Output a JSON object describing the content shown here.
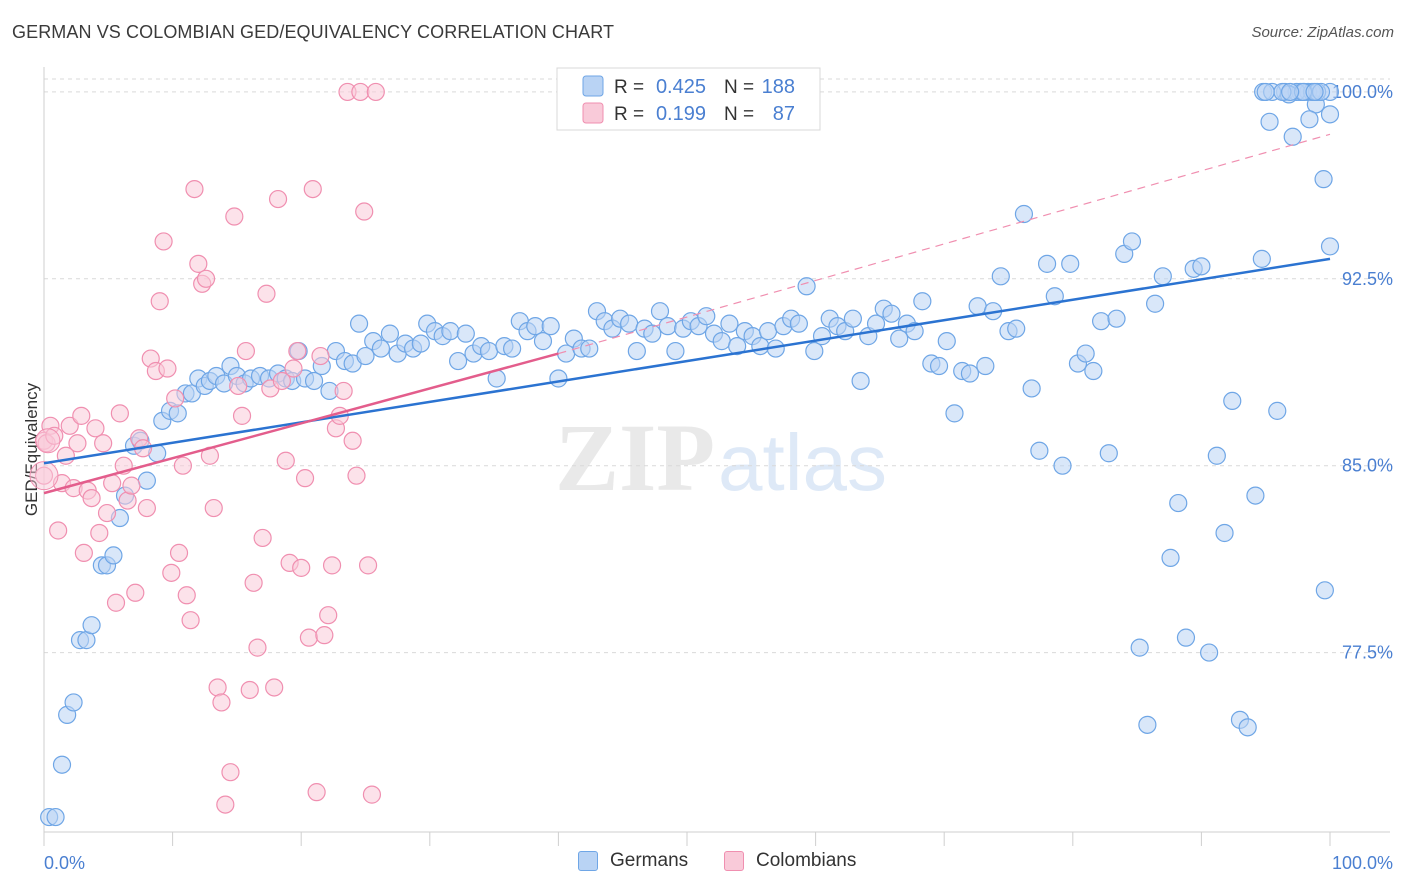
{
  "header": {
    "title": "GERMAN VS COLOMBIAN GED/EQUIVALENCY CORRELATION CHART",
    "source": "Source: ZipAtlas.com"
  },
  "watermark": {
    "zip": "ZIP",
    "atlas": "atlas"
  },
  "colors": {
    "blue": "#6fa6e6",
    "blue_fill": "#b9d3f4",
    "blue_line": "#2b73d1",
    "pink": "#f08fb0",
    "pink_fill": "#f9cad9",
    "pink_line": "#e35d8c",
    "axis_text": "#4a7fd1",
    "grid": "#d9d9d9"
  },
  "legend_stats": [
    {
      "series": "Germans",
      "r_label": "R =",
      "r_value": "0.425",
      "n_label": "N =",
      "n_value": "188"
    },
    {
      "series": "Colombians",
      "r_label": "R =",
      "r_value": "0.199",
      "n_label": "N =",
      "n_value": "87"
    }
  ],
  "chart_data": {
    "type": "scatter",
    "title": "GERMAN VS COLOMBIAN GED/EQUIVALENCY CORRELATION CHART",
    "xlabel": "",
    "ylabel": "GED/Equivalency",
    "xlim": [
      0,
      100
    ],
    "ylim": [
      70.3,
      101.0
    ],
    "x_tick_labels": [
      "0.0%",
      "100.0%"
    ],
    "y_ticks": [
      77.5,
      85.0,
      92.5,
      100.0
    ],
    "y_tick_labels": [
      "77.5%",
      "85.0%",
      "92.5%",
      "100.0%"
    ],
    "grid": true,
    "legend_position": "top-center",
    "series": [
      {
        "name": "Germans",
        "trend": {
          "x": [
            0,
            100
          ],
          "y": [
            85.1,
            93.3
          ],
          "style": "solid"
        },
        "points": [
          [
            0.4,
            70.9
          ],
          [
            0.9,
            70.9
          ],
          [
            1.4,
            73.0
          ],
          [
            1.8,
            75.0
          ],
          [
            2.3,
            75.5
          ],
          [
            2.8,
            78.0
          ],
          [
            3.3,
            78.0
          ],
          [
            3.7,
            78.6
          ],
          [
            4.5,
            81.0
          ],
          [
            4.9,
            81.0
          ],
          [
            5.4,
            81.4
          ],
          [
            5.9,
            82.9
          ],
          [
            6.3,
            83.8
          ],
          [
            7.0,
            85.8
          ],
          [
            7.5,
            86.0
          ],
          [
            8.0,
            84.4
          ],
          [
            8.8,
            85.5
          ],
          [
            9.2,
            86.8
          ],
          [
            9.8,
            87.2
          ],
          [
            10.4,
            87.1
          ],
          [
            11.0,
            87.9
          ],
          [
            11.5,
            87.9
          ],
          [
            12.0,
            88.5
          ],
          [
            12.5,
            88.2
          ],
          [
            12.9,
            88.4
          ],
          [
            13.4,
            88.6
          ],
          [
            14.0,
            88.3
          ],
          [
            14.5,
            89.0
          ],
          [
            15.0,
            88.6
          ],
          [
            15.6,
            88.3
          ],
          [
            16.1,
            88.5
          ],
          [
            16.8,
            88.6
          ],
          [
            17.5,
            88.5
          ],
          [
            18.2,
            88.7
          ],
          [
            18.8,
            88.5
          ],
          [
            19.3,
            88.4
          ],
          [
            19.8,
            89.6
          ],
          [
            20.3,
            88.5
          ],
          [
            21.0,
            88.4
          ],
          [
            21.6,
            89.0
          ],
          [
            22.2,
            88.0
          ],
          [
            22.7,
            89.6
          ],
          [
            23.4,
            89.2
          ],
          [
            24.0,
            89.1
          ],
          [
            24.5,
            90.7
          ],
          [
            25.0,
            89.4
          ],
          [
            25.6,
            90.0
          ],
          [
            26.2,
            89.7
          ],
          [
            26.9,
            90.3
          ],
          [
            27.5,
            89.5
          ],
          [
            28.1,
            89.9
          ],
          [
            28.7,
            89.7
          ],
          [
            29.3,
            89.9
          ],
          [
            29.8,
            90.7
          ],
          [
            30.4,
            90.4
          ],
          [
            31.0,
            90.2
          ],
          [
            31.6,
            90.4
          ],
          [
            32.2,
            89.2
          ],
          [
            32.8,
            90.3
          ],
          [
            33.4,
            89.5
          ],
          [
            34.0,
            89.8
          ],
          [
            34.6,
            89.6
          ],
          [
            35.2,
            88.5
          ],
          [
            35.8,
            89.8
          ],
          [
            36.4,
            89.7
          ],
          [
            37.0,
            90.8
          ],
          [
            37.6,
            90.4
          ],
          [
            38.2,
            90.6
          ],
          [
            38.8,
            90.0
          ],
          [
            39.4,
            90.6
          ],
          [
            40.0,
            88.5
          ],
          [
            40.6,
            89.5
          ],
          [
            41.2,
            90.1
          ],
          [
            41.8,
            89.7
          ],
          [
            42.4,
            89.7
          ],
          [
            43.0,
            91.2
          ],
          [
            43.6,
            90.8
          ],
          [
            44.2,
            90.5
          ],
          [
            44.8,
            90.9
          ],
          [
            45.5,
            90.7
          ],
          [
            46.1,
            89.6
          ],
          [
            46.7,
            90.5
          ],
          [
            47.3,
            90.3
          ],
          [
            47.9,
            91.2
          ],
          [
            48.5,
            90.6
          ],
          [
            49.1,
            89.6
          ],
          [
            49.7,
            90.5
          ],
          [
            50.3,
            90.8
          ],
          [
            50.9,
            90.6
          ],
          [
            51.5,
            91.0
          ],
          [
            52.1,
            90.3
          ],
          [
            52.7,
            90.0
          ],
          [
            53.3,
            90.7
          ],
          [
            53.9,
            89.8
          ],
          [
            54.5,
            90.4
          ],
          [
            55.1,
            90.2
          ],
          [
            55.7,
            89.8
          ],
          [
            56.3,
            90.4
          ],
          [
            56.9,
            89.7
          ],
          [
            57.5,
            90.6
          ],
          [
            58.1,
            90.9
          ],
          [
            58.7,
            90.7
          ],
          [
            59.3,
            92.2
          ],
          [
            59.9,
            89.6
          ],
          [
            60.5,
            90.2
          ],
          [
            61.1,
            90.9
          ],
          [
            61.7,
            90.6
          ],
          [
            62.3,
            90.4
          ],
          [
            62.9,
            90.9
          ],
          [
            63.5,
            88.4
          ],
          [
            64.1,
            90.2
          ],
          [
            64.7,
            90.7
          ],
          [
            65.3,
            91.3
          ],
          [
            65.9,
            91.1
          ],
          [
            66.5,
            90.1
          ],
          [
            67.1,
            90.7
          ],
          [
            67.7,
            90.4
          ],
          [
            68.3,
            91.6
          ],
          [
            69.0,
            89.1
          ],
          [
            69.6,
            89.0
          ],
          [
            70.2,
            90.0
          ],
          [
            70.8,
            87.1
          ],
          [
            71.4,
            88.8
          ],
          [
            72.0,
            88.7
          ],
          [
            72.6,
            91.4
          ],
          [
            73.2,
            89.0
          ],
          [
            73.8,
            91.2
          ],
          [
            74.4,
            92.6
          ],
          [
            75.0,
            90.4
          ],
          [
            75.6,
            90.5
          ],
          [
            76.2,
            95.1
          ],
          [
            76.8,
            88.1
          ],
          [
            77.4,
            85.6
          ],
          [
            78.0,
            93.1
          ],
          [
            78.6,
            91.8
          ],
          [
            79.2,
            85.0
          ],
          [
            79.8,
            93.1
          ],
          [
            80.4,
            89.1
          ],
          [
            81.0,
            89.5
          ],
          [
            81.6,
            88.8
          ],
          [
            82.2,
            90.8
          ],
          [
            82.8,
            85.5
          ],
          [
            83.4,
            90.9
          ],
          [
            84.0,
            93.5
          ],
          [
            84.6,
            94.0
          ],
          [
            85.2,
            77.7
          ],
          [
            85.8,
            74.6
          ],
          [
            86.4,
            91.5
          ],
          [
            87.0,
            92.6
          ],
          [
            87.6,
            81.3
          ],
          [
            88.2,
            83.5
          ],
          [
            88.8,
            78.1
          ],
          [
            89.4,
            92.9
          ],
          [
            90.0,
            93.0
          ],
          [
            90.6,
            77.5
          ],
          [
            91.2,
            85.4
          ],
          [
            91.8,
            82.3
          ],
          [
            92.4,
            87.6
          ],
          [
            93.0,
            74.8
          ],
          [
            93.6,
            74.5
          ],
          [
            94.2,
            83.8
          ],
          [
            94.8,
            100.0
          ],
          [
            95.3,
            98.8
          ],
          [
            95.9,
            87.2
          ],
          [
            96.5,
            100.0
          ],
          [
            97.1,
            98.2
          ],
          [
            97.7,
            100.0
          ],
          [
            98.3,
            100.0
          ],
          [
            98.9,
            99.5
          ],
          [
            99.5,
            96.5
          ],
          [
            100.0,
            99.1
          ],
          [
            97.4,
            100.0
          ],
          [
            98.6,
            100.0
          ],
          [
            99.6,
            80.0
          ],
          [
            100.0,
            100.0
          ],
          [
            98.0,
            100.0
          ],
          [
            96.8,
            99.9
          ],
          [
            95.5,
            100.0
          ],
          [
            94.7,
            93.3
          ],
          [
            100.0,
            93.8
          ],
          [
            99.0,
            100.0
          ],
          [
            96.3,
            100.0
          ],
          [
            97.9,
            100.0
          ],
          [
            98.4,
            98.9
          ],
          [
            95.0,
            100.0
          ],
          [
            99.3,
            100.0
          ],
          [
            98.8,
            100.0
          ],
          [
            96.9,
            100.0
          ]
        ]
      },
      {
        "name": "Colombians",
        "trend": {
          "x": [
            0,
            40
          ],
          "y": [
            83.9,
            89.5
          ],
          "style": "solid",
          "dashed_extension_to": [
            100,
            98.3
          ]
        },
        "points": [
          [
            0.0,
            84.6
          ],
          [
            0.0,
            86.0
          ],
          [
            0.2,
            85.9
          ],
          [
            0.5,
            86.6
          ],
          [
            0.8,
            86.2
          ],
          [
            1.1,
            82.4
          ],
          [
            1.4,
            84.3
          ],
          [
            1.7,
            85.4
          ],
          [
            2.0,
            86.6
          ],
          [
            2.3,
            84.1
          ],
          [
            2.6,
            85.9
          ],
          [
            2.9,
            87.0
          ],
          [
            3.1,
            81.5
          ],
          [
            3.4,
            84.0
          ],
          [
            3.7,
            83.7
          ],
          [
            4.0,
            86.5
          ],
          [
            4.3,
            82.3
          ],
          [
            4.6,
            85.9
          ],
          [
            4.9,
            83.1
          ],
          [
            5.3,
            84.3
          ],
          [
            5.6,
            79.5
          ],
          [
            5.9,
            87.1
          ],
          [
            6.2,
            85.0
          ],
          [
            6.5,
            83.6
          ],
          [
            6.8,
            84.2
          ],
          [
            7.1,
            79.9
          ],
          [
            7.4,
            86.1
          ],
          [
            7.7,
            85.7
          ],
          [
            8.0,
            83.3
          ],
          [
            8.3,
            89.3
          ],
          [
            8.7,
            88.8
          ],
          [
            9.0,
            91.6
          ],
          [
            9.3,
            94.0
          ],
          [
            9.6,
            88.9
          ],
          [
            9.9,
            80.7
          ],
          [
            10.2,
            87.7
          ],
          [
            10.5,
            81.5
          ],
          [
            10.8,
            85.0
          ],
          [
            11.1,
            79.8
          ],
          [
            11.4,
            78.8
          ],
          [
            11.7,
            96.1
          ],
          [
            12.0,
            93.1
          ],
          [
            12.3,
            92.3
          ],
          [
            12.6,
            92.5
          ],
          [
            12.9,
            85.4
          ],
          [
            13.2,
            83.3
          ],
          [
            13.5,
            76.1
          ],
          [
            13.8,
            75.5
          ],
          [
            14.1,
            71.4
          ],
          [
            14.5,
            72.7
          ],
          [
            14.8,
            95.0
          ],
          [
            15.1,
            88.2
          ],
          [
            15.4,
            87.0
          ],
          [
            15.7,
            89.6
          ],
          [
            16.0,
            76.0
          ],
          [
            16.3,
            80.3
          ],
          [
            16.6,
            77.7
          ],
          [
            17.0,
            82.1
          ],
          [
            17.3,
            91.9
          ],
          [
            17.6,
            88.1
          ],
          [
            17.9,
            76.1
          ],
          [
            18.2,
            95.7
          ],
          [
            18.5,
            88.4
          ],
          [
            18.8,
            85.2
          ],
          [
            19.1,
            81.1
          ],
          [
            19.4,
            88.9
          ],
          [
            19.7,
            89.6
          ],
          [
            20.0,
            80.9
          ],
          [
            20.3,
            84.5
          ],
          [
            20.6,
            78.1
          ],
          [
            20.9,
            96.1
          ],
          [
            21.2,
            71.9
          ],
          [
            21.5,
            89.4
          ],
          [
            21.8,
            78.2
          ],
          [
            22.1,
            79.0
          ],
          [
            22.4,
            81.0
          ],
          [
            22.7,
            86.5
          ],
          [
            23.0,
            87.0
          ],
          [
            23.3,
            88.0
          ],
          [
            23.6,
            100.0
          ],
          [
            24.0,
            86.0
          ],
          [
            24.3,
            84.6
          ],
          [
            24.6,
            100.0
          ],
          [
            24.9,
            95.2
          ],
          [
            25.2,
            81.0
          ],
          [
            25.5,
            71.8
          ],
          [
            25.8,
            100.0
          ]
        ]
      }
    ]
  },
  "bottom_legend": [
    {
      "name": "Germans"
    },
    {
      "name": "Colombians"
    }
  ]
}
